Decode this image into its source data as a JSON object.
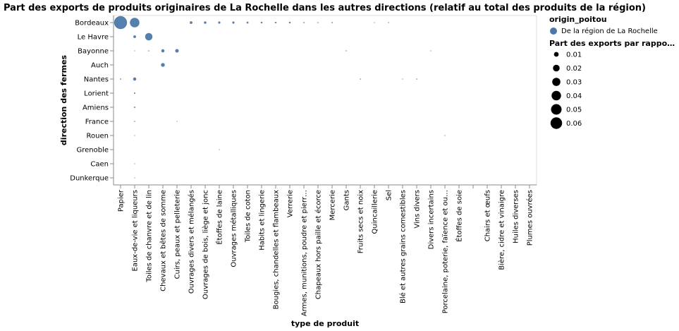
{
  "chart_data": {
    "type": "scatter",
    "title": "Part des exports de produits originaires de La Rochelle dans les autres directions (relatif au total des produits de la région)",
    "xlabel": "type de produit",
    "ylabel": "direction des fermes",
    "x_categories": [
      "Papier",
      "Eaux-de-vie et liqueurs",
      "Toiles de chanvre et de lin",
      "Chevaux et bêtes de somme",
      "Cuirs, peaux et pelleterie",
      "Ouvrages divers et mélangés",
      "Ouvrages de bois, liège et jonc",
      "Étoffes de laine",
      "Ouvrages métalliques",
      "Toiles de coton",
      "Habits et lingerie",
      "Bougies, chandelles et flambeaux",
      "Verrerie",
      "Armes, munitions, poudre et pierr…",
      "Chapeaux hors paille et écorce",
      "Mercerie",
      "Gants",
      "Fruits secs et noix",
      "Quincaillerie",
      "Sel",
      "Blé et autres grains comestibles",
      "Vins divers",
      "Divers incertains",
      "Porcelaine, poterie, faïence et ou…",
      "Étoffes de soie",
      "",
      "Chairs et œufs",
      "Bière, cidre et vinaigre",
      "Huiles diverses",
      "Plumes ouvrées"
    ],
    "y_categories": [
      "Bordeaux",
      "Le Havre",
      "Bayonne",
      "Auch",
      "Nantes",
      "Lorient",
      "Amiens",
      "France",
      "Rouen",
      "Grenoble",
      "Caen",
      "Dunkerque"
    ],
    "color": "#4c78a8",
    "series": [
      {
        "name": "De la région de La Rochelle",
        "points": [
          {
            "x": "Papier",
            "y": "Bordeaux",
            "value": 0.068
          },
          {
            "x": "Eaux-de-vie et liqueurs",
            "y": "Bordeaux",
            "value": 0.037
          },
          {
            "x": "Ouvrages divers et mélangés",
            "y": "Bordeaux",
            "value": 0.003
          },
          {
            "x": "Ouvrages de bois, liège et jonc",
            "y": "Bordeaux",
            "value": 0.0025
          },
          {
            "x": "Étoffes de laine",
            "y": "Bordeaux",
            "value": 0.002
          },
          {
            "x": "Ouvrages métalliques",
            "y": "Bordeaux",
            "value": 0.002
          },
          {
            "x": "Toiles de coton",
            "y": "Bordeaux",
            "value": 0.0015
          },
          {
            "x": "Habits et lingerie",
            "y": "Bordeaux",
            "value": 0.0012
          },
          {
            "x": "Bougies, chandelles et flambeaux",
            "y": "Bordeaux",
            "value": 0.001
          },
          {
            "x": "Verrerie",
            "y": "Bordeaux",
            "value": 0.0012
          },
          {
            "x": "Armes, munitions, poudre et pierr…",
            "y": "Bordeaux",
            "value": 0.0006
          },
          {
            "x": "Chapeaux hors paille et écorce",
            "y": "Bordeaux",
            "value": 0.0005
          },
          {
            "x": "Mercerie",
            "y": "Bordeaux",
            "value": 0.0006
          },
          {
            "x": "Quincaillerie",
            "y": "Bordeaux",
            "value": 0.0003
          },
          {
            "x": "Sel",
            "y": "Bordeaux",
            "value": 0.0004
          },
          {
            "x": "Eaux-de-vie et liqueurs",
            "y": "Le Havre",
            "value": 0.003
          },
          {
            "x": "Toiles de chanvre et de lin",
            "y": "Le Havre",
            "value": 0.022
          },
          {
            "x": "Eaux-de-vie et liqueurs",
            "y": "Bayonne",
            "value": 0.0002
          },
          {
            "x": "Toiles de chanvre et de lin",
            "y": "Bayonne",
            "value": 0.0005
          },
          {
            "x": "Chevaux et bêtes de somme",
            "y": "Bayonne",
            "value": 0.004
          },
          {
            "x": "Cuirs, peaux et pelleterie",
            "y": "Bayonne",
            "value": 0.005
          },
          {
            "x": "Gants",
            "y": "Bayonne",
            "value": 0.0004
          },
          {
            "x": "Divers incertains",
            "y": "Bayonne",
            "value": 0.0003
          },
          {
            "x": "Chevaux et bêtes de somme",
            "y": "Auch",
            "value": 0.006
          },
          {
            "x": "Papier",
            "y": "Nantes",
            "value": 0.0006
          },
          {
            "x": "Eaux-de-vie et liqueurs",
            "y": "Nantes",
            "value": 0.004
          },
          {
            "x": "Fruits secs et noix",
            "y": "Nantes",
            "value": 0.0005
          },
          {
            "x": "Blé et autres grains comestibles",
            "y": "Nantes",
            "value": 0.0003
          },
          {
            "x": "Vins divers",
            "y": "Nantes",
            "value": 0.0005
          },
          {
            "x": "Eaux-de-vie et liqueurs",
            "y": "Lorient",
            "value": 0.0008
          },
          {
            "x": "Eaux-de-vie et liqueurs",
            "y": "Amiens",
            "value": 0.0008
          },
          {
            "x": "Eaux-de-vie et liqueurs",
            "y": "France",
            "value": 0.0005
          },
          {
            "x": "Cuirs, peaux et pelleterie",
            "y": "France",
            "value": 0.0002
          },
          {
            "x": "Eaux-de-vie et liqueurs",
            "y": "Rouen",
            "value": 0.0002
          },
          {
            "x": "Porcelaine, poterie, faïence et ou…",
            "y": "Rouen",
            "value": 0.0003
          },
          {
            "x": "Étoffes de laine",
            "y": "Grenoble",
            "value": 0.0003
          },
          {
            "x": "Eaux-de-vie et liqueurs",
            "y": "Caen",
            "value": 0.0002
          },
          {
            "x": "Eaux-de-vie et liqueurs",
            "y": "Dunkerque",
            "value": 0.0002
          }
        ]
      }
    ],
    "legend": {
      "color_title": "origin_poitou",
      "color_label": "De la région de La Rochelle",
      "size_title": "Part des exports par rappo…",
      "size_values": [
        0.01,
        0.02,
        0.03,
        0.04,
        0.05,
        0.06
      ],
      "size_labels": [
        "0.01",
        "0.02",
        "0.03",
        "0.04",
        "0.05",
        "0.06"
      ],
      "placement": "right"
    },
    "grid": false
  }
}
